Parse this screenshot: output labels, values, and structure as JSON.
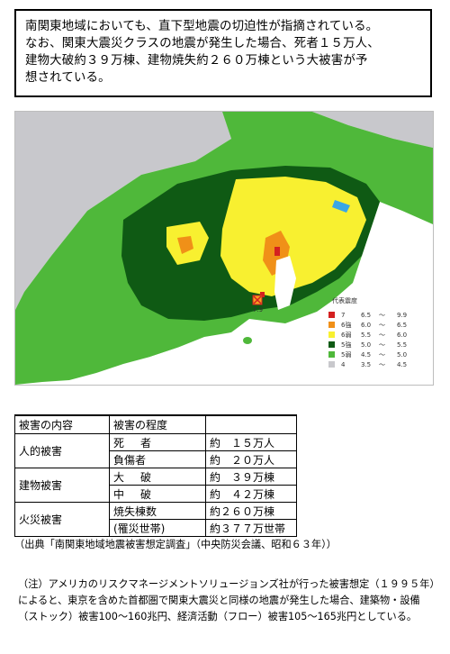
{
  "intro": {
    "line1": "南関東地域においても、直下型地震の切迫性が指摘されている。",
    "line2": "なお、関東大震災クラスの地震が発生した場合、死者１５万人、",
    "line3": "建物大破約３９万棟、建物焼失約２６０万棟という大被害が予",
    "line4": "想されている。"
  },
  "map": {
    "epicenter_label": "7.9",
    "legend_title": "代表震度",
    "legend": [
      {
        "class": "7",
        "from": "6.5",
        "sep": "～",
        "to": "9.9",
        "color": "#d42020"
      },
      {
        "class": "6強",
        "from": "6.0",
        "sep": "～",
        "to": "6.5",
        "color": "#f09018"
      },
      {
        "class": "6弱",
        "from": "5.5",
        "sep": "～",
        "to": "6.0",
        "color": "#f8f030"
      },
      {
        "class": "5強",
        "from": "5.0",
        "sep": "～",
        "to": "5.5",
        "color": "#0f5a14"
      },
      {
        "class": "5弱",
        "from": "4.5",
        "sep": "～",
        "to": "5.0",
        "color": "#4fb83a"
      },
      {
        "class": "4",
        "from": "3.5",
        "sep": "～",
        "to": "4.5",
        "color": "#c8c8cc"
      }
    ]
  },
  "table": {
    "headers": [
      "被害の内容",
      "被害の程度",
      ""
    ],
    "groups": [
      {
        "category": "人的被害",
        "rows": [
          {
            "label": "死　者",
            "value": "約　１５万人"
          },
          {
            "label": "負傷者",
            "value": "約　２０万人"
          }
        ]
      },
      {
        "category": "建物被害",
        "rows": [
          {
            "label": "大　破",
            "value": "約　３９万棟"
          },
          {
            "label": "中　破",
            "value": "約　４２万棟"
          }
        ]
      },
      {
        "category": "火災被害",
        "rows": [
          {
            "label": "焼失棟数",
            "value": "約２６０万棟"
          },
          {
            "label": "(罹災世帯)",
            "value": "約３７７万世帯"
          }
        ]
      }
    ]
  },
  "source": "（出典「南関東地域地震被害想定調査」（中央防災会議、昭和６３年））",
  "note": "（注）アメリカのリスクマネージメントソリュージョンズ社が行った被害想定（１９９５年）によると、東京を含めた首都圏で関東大震災と同様の地震が発生した場合、建築物・設備（ストック）被害100～160兆円、経済活動（フロー）被害105～165兆円としている。"
}
